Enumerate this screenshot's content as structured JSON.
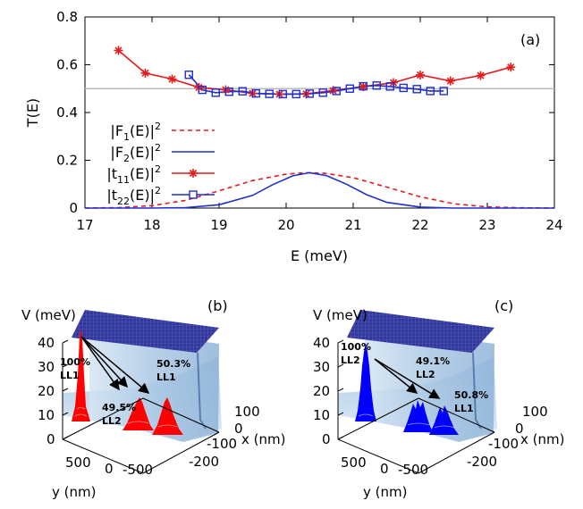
{
  "chart_data": [
    {
      "type": "line",
      "panel_label": "(a)",
      "xlabel": "E (meV)",
      "ylabel": "T(E)",
      "xlim": [
        17,
        24
      ],
      "ylim": [
        0,
        0.8
      ],
      "xticks": [
        "17",
        "18",
        "19",
        "20",
        "21",
        "22",
        "23",
        "24"
      ],
      "yticks": [
        "0",
        "0.2",
        "0.4",
        "0.6",
        "0.8"
      ],
      "reference_line": 0.5,
      "series": [
        {
          "name": "|F1(E)|^2",
          "legend_base": "|F",
          "legend_sub": "1",
          "legend_mid": "(E)|",
          "legend_sup": "2",
          "style": "dashed",
          "color": "#e41a1c",
          "x": [
            17.0,
            17.5,
            18.0,
            18.5,
            19.0,
            19.5,
            20.0,
            20.3,
            20.6,
            21.0,
            21.5,
            22.0,
            22.5,
            23.0,
            23.5,
            24.0
          ],
          "y": [
            0.0,
            0.002,
            0.01,
            0.032,
            0.072,
            0.115,
            0.142,
            0.148,
            0.145,
            0.127,
            0.088,
            0.047,
            0.018,
            0.005,
            0.001,
            0.0
          ]
        },
        {
          "name": "|F2(E)|^2",
          "legend_base": "|F",
          "legend_sub": "2",
          "legend_mid": "(E)|",
          "legend_sup": "2",
          "style": "solid",
          "color": "#1f2fd0",
          "x": [
            17.0,
            18.0,
            18.5,
            19.0,
            19.5,
            19.8,
            20.1,
            20.35,
            20.6,
            20.9,
            21.2,
            21.5,
            22.0,
            22.5,
            23.0,
            24.0
          ],
          "y": [
            0.0,
            0.0,
            0.002,
            0.014,
            0.053,
            0.098,
            0.135,
            0.148,
            0.136,
            0.1,
            0.056,
            0.024,
            0.004,
            0.0,
            0.0,
            0.0
          ]
        },
        {
          "name": "|t11(E)|^2",
          "legend_base": "|t",
          "legend_sub": "11",
          "legend_mid": "(E)|",
          "legend_sup": "2",
          "marker": "star",
          "color": "#e41a1c",
          "x": [
            17.5,
            17.9,
            18.3,
            18.7,
            19.1,
            19.5,
            19.9,
            20.3,
            20.7,
            21.15,
            21.6,
            22.0,
            22.45,
            22.9,
            23.35
          ],
          "y": [
            0.66,
            0.565,
            0.54,
            0.505,
            0.495,
            0.48,
            0.477,
            0.478,
            0.492,
            0.508,
            0.525,
            0.557,
            0.532,
            0.555,
            0.59
          ]
        },
        {
          "name": "|t22(E)|^2",
          "legend_base": "|t",
          "legend_sub": "22",
          "legend_mid": "(E)|",
          "legend_sup": "2",
          "marker": "square",
          "color": "#1f2fd0",
          "x": [
            18.55,
            18.75,
            18.95,
            19.15,
            19.35,
            19.55,
            19.75,
            19.95,
            20.15,
            20.35,
            20.55,
            20.75,
            20.95,
            21.15,
            21.35,
            21.55,
            21.75,
            21.95,
            22.15,
            22.35
          ],
          "y": [
            0.558,
            0.495,
            0.483,
            0.487,
            0.489,
            0.48,
            0.478,
            0.477,
            0.477,
            0.479,
            0.483,
            0.49,
            0.5,
            0.51,
            0.513,
            0.509,
            0.503,
            0.498,
            0.49,
            0.49
          ]
        }
      ]
    },
    {
      "type": "surface3d",
      "panel_label": "(b)",
      "zlabel": "V (meV)",
      "xlabel": "x (nm)",
      "ylabel": "y (nm)",
      "zticks": [
        "0",
        "10",
        "20",
        "30",
        "40"
      ],
      "yticks": [
        "500",
        "0",
        "-500"
      ],
      "xticks": [
        "100",
        "0",
        "-100",
        "-200"
      ],
      "peak_color": "#ff0000",
      "annotations": [
        {
          "line1": "100%",
          "line2": "LL1"
        },
        {
          "line1": "49.5%",
          "line2": "LL2"
        },
        {
          "line1": "50.3%",
          "line2": "LL1"
        }
      ]
    },
    {
      "type": "surface3d",
      "panel_label": "(c)",
      "zlabel": "V (meV)",
      "xlabel": "x (nm)",
      "ylabel": "y (nm)",
      "zticks": [
        "0",
        "10",
        "20",
        "30",
        "40"
      ],
      "yticks": [
        "500",
        "0",
        "-500"
      ],
      "xticks": [
        "100",
        "0",
        "-100",
        "-200"
      ],
      "peak_color": "#0000ff",
      "annotations": [
        {
          "line1": "100%",
          "line2": "LL2"
        },
        {
          "line1": "49.1%",
          "line2": "LL2"
        },
        {
          "line1": "50.8%",
          "line2": "LL1"
        }
      ]
    }
  ]
}
